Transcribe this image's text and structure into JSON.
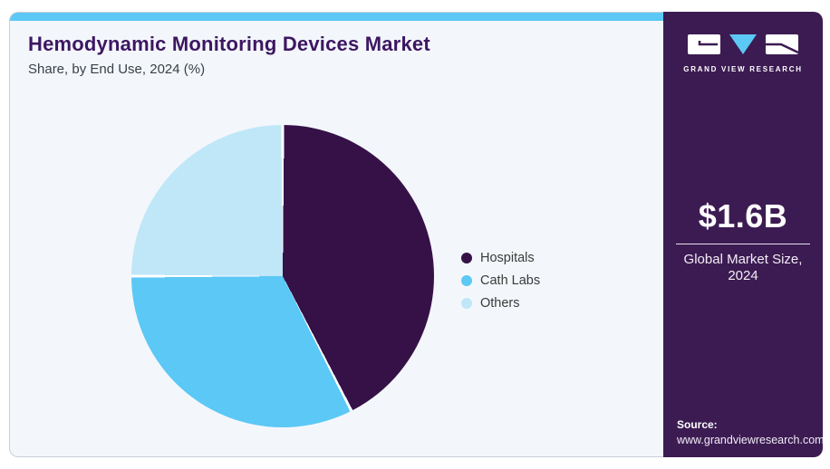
{
  "header": {
    "title": "Hemodynamic Monitoring Devices Market",
    "subtitle": "Share, by End Use, 2024 (%)"
  },
  "chart_data": {
    "type": "pie",
    "title": "Hemodynamic Monitoring Devices Market Share, by End Use, 2024 (%)",
    "labels": [
      "Hospitals",
      "Cath Labs",
      "Others"
    ],
    "values": [
      42.5,
      32.5,
      25.0
    ],
    "unit": "%",
    "colors": [
      "#361148",
      "#5bc8f5",
      "#bfe7f8"
    ],
    "start_angle_deg": 0,
    "direction": "clockwise",
    "legend_position": "right",
    "slice_separator_color": "#ffffff"
  },
  "sidebar": {
    "logo_text": "GRAND VIEW RESEARCH",
    "market_size": "$1.6B",
    "market_size_caption_line1": "Global Market Size,",
    "market_size_caption_line2": "2024",
    "source_label": "Source:",
    "source_url": "www.grandviewresearch.com"
  },
  "colors": {
    "accent_bar": "#5bc8f5",
    "card_background": "#f3f7fb",
    "card_border": "#c9ced8",
    "sidebar_background": "#3c1b52",
    "title_text": "#3d1762",
    "body_text": "#3a3a3a"
  }
}
